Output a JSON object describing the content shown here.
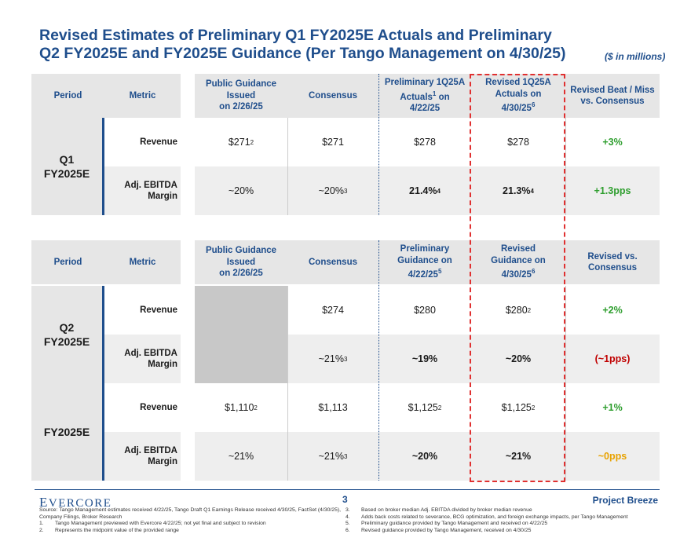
{
  "title": {
    "line1": "Revised Estimates of Preliminary Q1 FY2025E Actuals and Preliminary",
    "line2": "Q2 FY2025E and FY2025E Guidance (Per Tango Management on 4/30/25)",
    "unit": "($ in millions)"
  },
  "table1": {
    "headers": {
      "period": "Period",
      "metric": "Metric",
      "public": "Public Guidance\nIssued\non 2/26/25",
      "consensus": "Consensus",
      "prelim_a": "Preliminary 1Q25A\nActuals",
      "prelim_sup": "1",
      "prelim_b": " on\n4/22/25",
      "revised_a": "Revised 1Q25A\nActuals on\n4/30/25",
      "revised_sup": "6",
      "beat": "Revised Beat / Miss\nvs. Consensus"
    },
    "period": "Q1\nFY2025E",
    "rows": [
      {
        "metric": "Revenue",
        "public": "$271",
        "public_sup": "2",
        "consensus": "$271",
        "consensus_sup": "",
        "prelim": "$278",
        "prelim_sup": "",
        "revised": "$278",
        "revised_sup": "",
        "beat": "+3%"
      },
      {
        "metric": "Adj. EBITDA\nMargin",
        "public": "~20%",
        "public_sup": "",
        "consensus": "~20%",
        "consensus_sup": "3",
        "prelim": "21.4%",
        "prelim_sup": "4",
        "revised": "21.3%",
        "revised_sup": "4",
        "beat": "+1.3pps"
      }
    ]
  },
  "table2": {
    "headers": {
      "period": "Period",
      "metric": "Metric",
      "public": "Public Guidance\nIssued\non 2/26/25",
      "consensus": "Consensus",
      "prelim_a": "Preliminary\nGuidance on\n4/22/25",
      "prelim_sup": "5",
      "revised_a": "Revised\nGuidance on\n4/30/25",
      "revised_sup": "6",
      "beat": "Revised vs.\nConsensus"
    },
    "q2": {
      "period": "Q2\nFY2025E",
      "rows": [
        {
          "metric": "Revenue",
          "consensus": "$274",
          "consensus_sup": "",
          "prelim": "$280",
          "prelim_sup": "",
          "revised": "$280",
          "revised_sup": "2",
          "beat": "+2%"
        },
        {
          "metric": "Adj. EBITDA\nMargin",
          "consensus": "~21%",
          "consensus_sup": "3",
          "prelim": "~19%",
          "prelim_sup": "",
          "revised": "~20%",
          "revised_sup": "",
          "beat": "(~1pps)"
        }
      ]
    },
    "fy": {
      "period": "FY2025E",
      "rows": [
        {
          "metric": "Revenue",
          "public": "$1,110",
          "public_sup": "2",
          "consensus": "$1,113",
          "consensus_sup": "",
          "prelim": "$1,125",
          "prelim_sup": "2",
          "revised": "$1,125",
          "revised_sup": "2",
          "beat": "+1%"
        },
        {
          "metric": "Adj. EBITDA\nMargin",
          "public": "~21%",
          "public_sup": "",
          "consensus": "~21%",
          "consensus_sup": "3",
          "prelim": "~20%",
          "prelim_sup": "",
          "revised": "~21%",
          "revised_sup": "",
          "beat": "~0pps"
        }
      ]
    }
  },
  "footer": {
    "logo_first": "E",
    "logo_rest": "VERCORE",
    "page": "3",
    "project": "Project Breeze",
    "source": "Source: Tango Management estimates received 4/22/25, Tango Draft Q1 Earnings Release received 4/30/25, FactSet (4/30/25),\nCompany Filings, Broker Research",
    "notes_left": [
      {
        "n": "1.",
        "t": "Tango Management previewed with Evercore 4/22/25; not yet final and subject to revision"
      },
      {
        "n": "2.",
        "t": "Represents the midpoint value of the provided range"
      }
    ],
    "notes_right": [
      {
        "n": "3.",
        "t": "Based on broker median Adj. EBITDA divided by broker median revenue"
      },
      {
        "n": "4.",
        "t": "Adds back costs related to severance, BCG optimization, and foreign exchange impacts, per Tango Management"
      },
      {
        "n": "5.",
        "t": "Preliminary guidance provided by Tango Management and received on 4/22/25"
      },
      {
        "n": "6.",
        "t": "Revised guidance provided by Tango Management, received on 4/30/25"
      }
    ]
  },
  "colors": {
    "navy": "#1f4e8c",
    "green": "#2e9e2e",
    "red": "#c00000",
    "amber": "#e8a200",
    "dash": "#e03030"
  }
}
